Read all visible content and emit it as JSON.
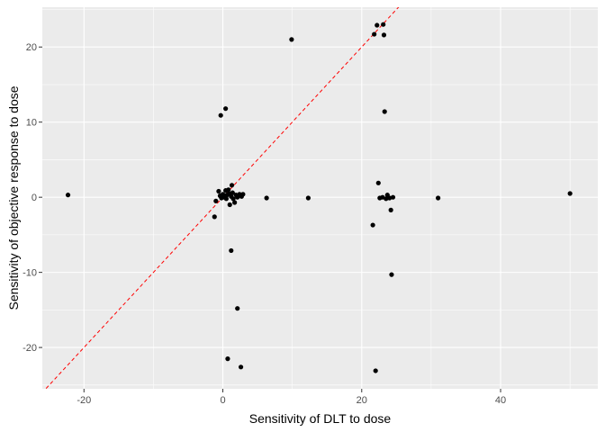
{
  "chart_data": {
    "type": "scatter",
    "xlabel": "Sensitivity of DLT to dose",
    "ylabel": "Sensitivity of objective response to dose",
    "xlim": [
      -26,
      54
    ],
    "ylim": [
      -25.5,
      25.3
    ],
    "x_ticks": [
      -20,
      0,
      20,
      40
    ],
    "y_ticks": [
      -20,
      -10,
      0,
      10,
      20
    ],
    "grid": true,
    "panel_background": "#ebebeb",
    "grid_color": "#ffffff",
    "point_color": "#000000",
    "reference_line": {
      "slope": 1,
      "intercept": 0,
      "color": "#ff0000",
      "style": "dashed"
    },
    "points": [
      {
        "x": -22.3,
        "y": 0.3
      },
      {
        "x": -1.2,
        "y": -2.6
      },
      {
        "x": -1.0,
        "y": -0.5
      },
      {
        "x": -0.6,
        "y": 0.8
      },
      {
        "x": -0.4,
        "y": 0.2
      },
      {
        "x": -0.2,
        "y": -0.1
      },
      {
        "x": 0.0,
        "y": 0.4
      },
      {
        "x": 0.2,
        "y": 0.0
      },
      {
        "x": 0.4,
        "y": 0.9
      },
      {
        "x": 0.5,
        "y": -0.2
      },
      {
        "x": 0.6,
        "y": 0.3
      },
      {
        "x": 0.8,
        "y": 1.0
      },
      {
        "x": 0.9,
        "y": 0.5
      },
      {
        "x": 1.0,
        "y": -1.0
      },
      {
        "x": 1.2,
        "y": 0.1
      },
      {
        "x": 1.3,
        "y": 1.6
      },
      {
        "x": 1.4,
        "y": 0.6
      },
      {
        "x": 1.5,
        "y": -0.2
      },
      {
        "x": 1.7,
        "y": -0.7
      },
      {
        "x": 1.9,
        "y": 0.3
      },
      {
        "x": 2.1,
        "y": 0.0
      },
      {
        "x": 2.4,
        "y": 0.4
      },
      {
        "x": 2.7,
        "y": 0.1
      },
      {
        "x": 2.9,
        "y": 0.4
      },
      {
        "x": -0.3,
        "y": 10.9
      },
      {
        "x": 0.4,
        "y": 11.8
      },
      {
        "x": 1.2,
        "y": -7.1
      },
      {
        "x": 2.1,
        "y": -14.8
      },
      {
        "x": 0.7,
        "y": -21.5
      },
      {
        "x": 2.6,
        "y": -22.6
      },
      {
        "x": 6.3,
        "y": -0.1
      },
      {
        "x": 9.9,
        "y": 21.0
      },
      {
        "x": 12.3,
        "y": -0.1
      },
      {
        "x": 21.6,
        "y": -3.7
      },
      {
        "x": 21.8,
        "y": 21.7
      },
      {
        "x": 22.0,
        "y": -23.1
      },
      {
        "x": 22.2,
        "y": 22.9
      },
      {
        "x": 22.4,
        "y": 1.9
      },
      {
        "x": 22.6,
        "y": -0.1
      },
      {
        "x": 23.0,
        "y": 0.0
      },
      {
        "x": 23.1,
        "y": 23.0
      },
      {
        "x": 23.2,
        "y": 21.6
      },
      {
        "x": 23.3,
        "y": 11.4
      },
      {
        "x": 23.5,
        "y": -0.2
      },
      {
        "x": 23.7,
        "y": 0.3
      },
      {
        "x": 24.0,
        "y": -0.1
      },
      {
        "x": 24.2,
        "y": -1.7
      },
      {
        "x": 24.3,
        "y": -10.3
      },
      {
        "x": 24.5,
        "y": 0.0
      },
      {
        "x": 31.0,
        "y": -0.1
      },
      {
        "x": 50.0,
        "y": 0.5
      }
    ]
  }
}
